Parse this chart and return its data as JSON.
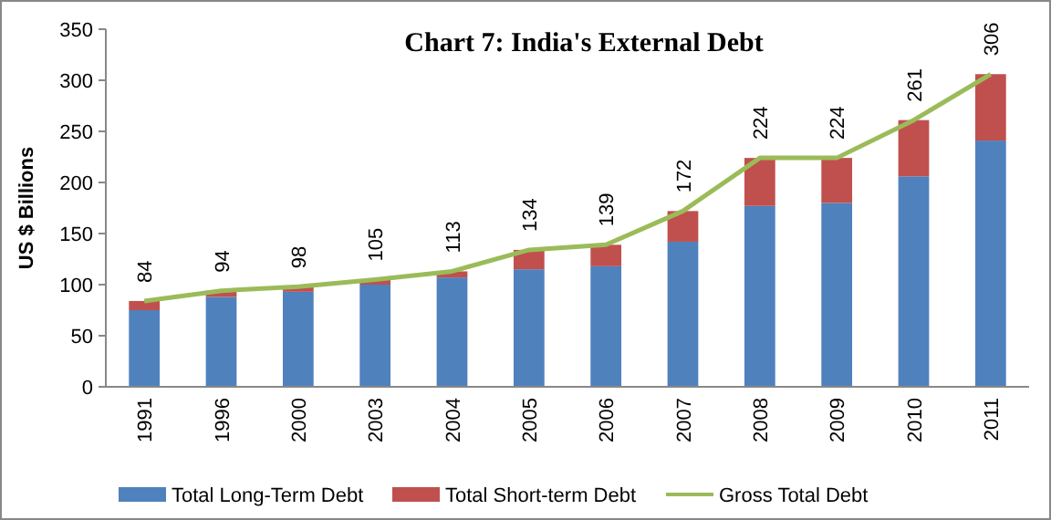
{
  "chart_data": {
    "type": "bar",
    "title": "Chart 7: India's External Debt",
    "ylabel": "US $ Billions",
    "categories": [
      "1991",
      "1996",
      "2000",
      "2003",
      "2004",
      "2005",
      "2006",
      "2007",
      "2008",
      "2009",
      "2010",
      "2011"
    ],
    "stacked": true,
    "ylim": [
      0,
      350
    ],
    "yticks": [
      0,
      50,
      100,
      150,
      200,
      250,
      300,
      350
    ],
    "legend": "bottom",
    "grid": false,
    "series": [
      {
        "name": "Total Long-Term Debt",
        "color": "#4f81bd",
        "values": [
          75,
          88,
          93,
          100,
          107,
          115,
          118,
          142,
          177,
          180,
          206,
          241
        ]
      },
      {
        "name": "Total Short-term Debt",
        "color": "#c0504d",
        "values": [
          9,
          6,
          5,
          5,
          6,
          19,
          21,
          30,
          47,
          44,
          55,
          65
        ]
      },
      {
        "name": "Gross Total Debt",
        "type": "line",
        "color": "#9bbb59",
        "values": [
          84,
          94,
          98,
          105,
          113,
          134,
          139,
          172,
          224,
          224,
          261,
          306
        ],
        "value_labels": [
          "84",
          "94",
          "98",
          "105",
          "113",
          "134",
          "139",
          "172",
          "224",
          "224",
          "261",
          "306"
        ]
      }
    ]
  }
}
